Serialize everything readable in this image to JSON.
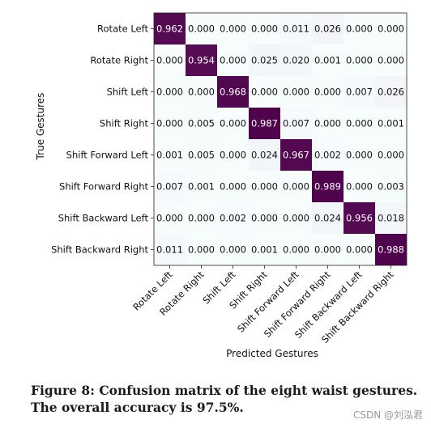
{
  "chart_data": {
    "type": "heatmap",
    "title": "",
    "xlabel": "Predicted Gestures",
    "ylabel": "True Gestures",
    "labels": [
      "Rotate Left",
      "Rotate Right",
      "Shift Left",
      "Shift Right",
      "Shift Forward Left",
      "Shift Forward Right",
      "Shift Backward Left",
      "Shift Backward Right"
    ],
    "values": [
      [
        0.962,
        0.0,
        0.0,
        0.0,
        0.011,
        0.026,
        0.0,
        0.0
      ],
      [
        0.0,
        0.954,
        0.0,
        0.025,
        0.02,
        0.001,
        0.0,
        0.0
      ],
      [
        0.0,
        0.0,
        0.968,
        0.0,
        0.0,
        0.0,
        0.007,
        0.026
      ],
      [
        0.0,
        0.005,
        0.0,
        0.987,
        0.007,
        0.0,
        0.0,
        0.001
      ],
      [
        0.001,
        0.005,
        0.0,
        0.024,
        0.967,
        0.002,
        0.0,
        0.0
      ],
      [
        0.007,
        0.001,
        0.0,
        0.0,
        0.0,
        0.989,
        0.0,
        0.003
      ],
      [
        0.0,
        0.0,
        0.002,
        0.0,
        0.0,
        0.024,
        0.956,
        0.018
      ],
      [
        0.011,
        0.0,
        0.0,
        0.001,
        0.0,
        0.0,
        0.0,
        0.988
      ]
    ],
    "color_low": "#f7fcfd",
    "color_high": "#4d004b"
  },
  "caption": "Figure 8: Confusion matrix of the eight waist gestures. The overall accuracy is 97.5%.",
  "watermark": "CSDN @刘泓君"
}
